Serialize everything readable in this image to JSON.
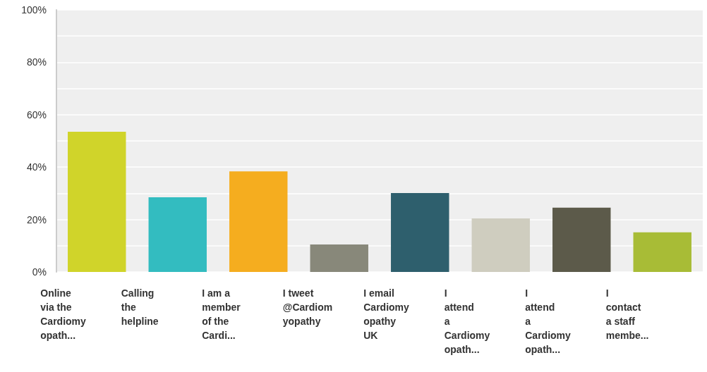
{
  "chart_data": {
    "type": "bar",
    "categories": [
      "Online\nvia the\nCardiomy\nopath...",
      "Calling\nthe\nhelpline",
      "I am a\nmember\nof the\nCardi...",
      "I tweet\n@Cardiom\nyopathy",
      "I email\nCardiomy\nopathy\nUK",
      "I\nattend\na\nCardiomy\nopath...",
      "I\nattend\na\nCardiomy\nopath...",
      "I\ncontact\na staff\nmembe..."
    ],
    "values": [
      53.5,
      28.5,
      38.4,
      10.5,
      30.1,
      20.4,
      24.5,
      15.1
    ],
    "colors": [
      "#d0d42a",
      "#33bcc0",
      "#f5ad1f",
      "#88887a",
      "#2e5f6d",
      "#cfcdbf",
      "#5c5a4a",
      "#a8bc36"
    ],
    "ylim": [
      0,
      100
    ],
    "yticks": [
      {
        "value": 0,
        "label": "0%"
      },
      {
        "value": 10,
        "label": null
      },
      {
        "value": 20,
        "label": "20%"
      },
      {
        "value": 30,
        "label": null
      },
      {
        "value": 40,
        "label": "40%"
      },
      {
        "value": 50,
        "label": null
      },
      {
        "value": 60,
        "label": "60%"
      },
      {
        "value": 70,
        "label": null
      },
      {
        "value": 80,
        "label": "80%"
      },
      {
        "value": 90,
        "label": null
      },
      {
        "value": 100,
        "label": "100%"
      }
    ],
    "grid": true
  }
}
